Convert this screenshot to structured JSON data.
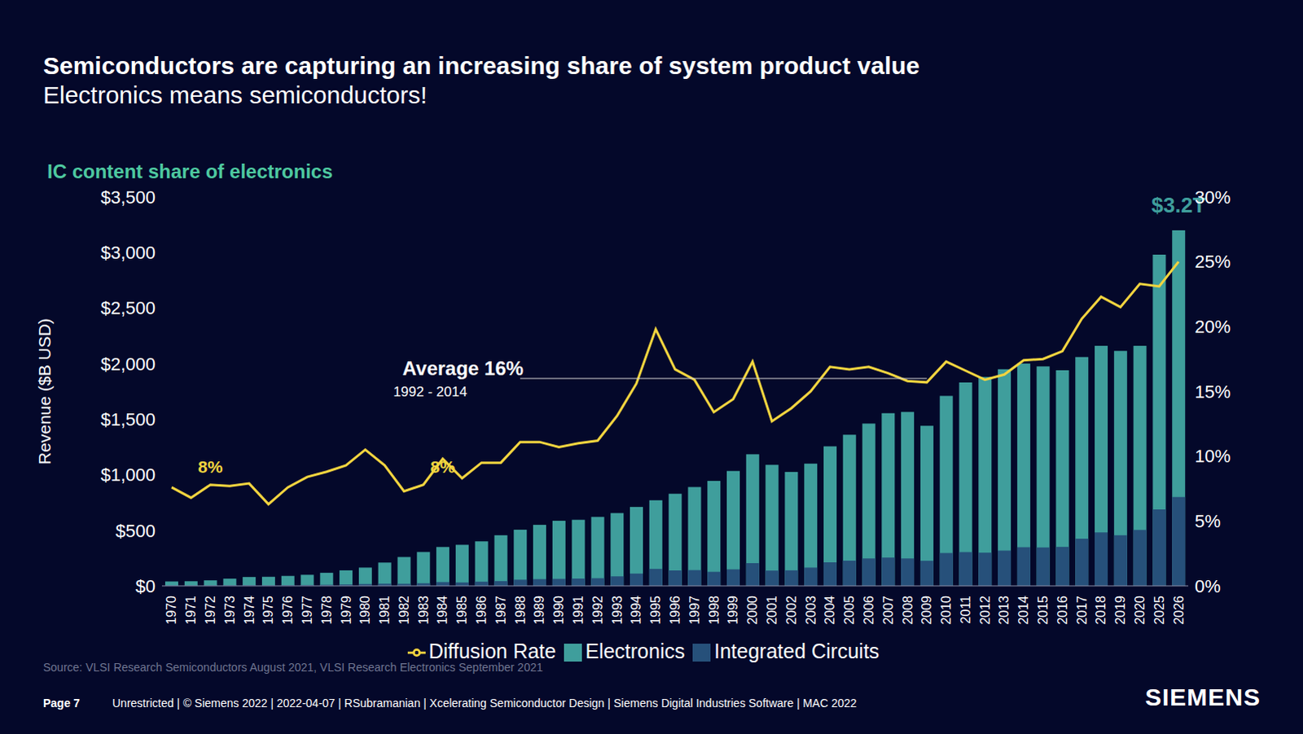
{
  "chart_data": {
    "type": "bar",
    "title": "Semiconductors are capturing an increasing share of system product value",
    "subtitle": "Electronics means semiconductors!",
    "chart_title": "IC content share of electronics",
    "y_label": "Revenue ($B USD)",
    "source": "Source:  VLSI Research Semiconductors August 2021, VLSI Research Electronics September 2021",
    "footer_page": "Page 7",
    "footer": "Unrestricted | © Siemens 2022 | 2022-04-07 | RSubramanian | Xcelerating Semiconductor Design | Siemens Digital Industries Software | MAC 2022",
    "logo": "SIEMENS",
    "categories": [
      "1970",
      "1971",
      "1972",
      "1973",
      "1974",
      "1975",
      "1976",
      "1977",
      "1978",
      "1979",
      "1980",
      "1981",
      "1982",
      "1983",
      "1984",
      "1985",
      "1986",
      "1987",
      "1988",
      "1989",
      "1990",
      "1991",
      "1992",
      "1993",
      "1994",
      "1995",
      "1996",
      "1997",
      "1998",
      "1999",
      "2000",
      "2001",
      "2002",
      "2003",
      "2004",
      "2005",
      "2006",
      "2007",
      "2008",
      "2009",
      "2010",
      "2011",
      "2012",
      "2013",
      "2014",
      "2015",
      "2016",
      "2017",
      "2018",
      "2019",
      "2020",
      "2025",
      "2026"
    ],
    "series": [
      {
        "name": "Electronics",
        "type": "bar",
        "color": "#3f9e9c",
        "values": [
          40,
          42,
          50,
          65,
          80,
          82,
          90,
          100,
          118,
          140,
          165,
          210,
          260,
          305,
          350,
          370,
          400,
          455,
          505,
          550,
          585,
          595,
          620,
          655,
          710,
          770,
          830,
          890,
          945,
          1035,
          1185,
          1090,
          1025,
          1100,
          1255,
          1360,
          1460,
          1555,
          1565,
          1440,
          1710,
          1830,
          1880,
          1950,
          2000,
          1975,
          1940,
          2060,
          2160,
          2115,
          2160,
          2980,
          3200
        ]
      },
      {
        "name": "Integrated Circuits",
        "type": "bar",
        "color": "#26507a",
        "values": [
          3,
          3,
          4,
          5,
          6,
          5,
          7,
          8,
          10,
          13,
          17,
          20,
          19,
          24,
          34,
          31,
          38,
          43,
          56,
          61,
          63,
          66,
          69,
          86,
          111,
          153,
          139,
          142,
          127,
          149,
          205,
          138,
          140,
          165,
          212,
          227,
          247,
          255,
          247,
          226,
          296,
          304,
          299,
          318,
          348,
          346,
          351,
          424,
          482,
          455,
          503,
          688,
          800
        ]
      },
      {
        "name": "Diffusion Rate",
        "type": "line",
        "axis": "y2",
        "color": "#f2d43f",
        "values": [
          7.6,
          6.8,
          7.8,
          7.7,
          7.9,
          6.3,
          7.6,
          8.4,
          8.8,
          9.3,
          10.5,
          9.3,
          7.3,
          7.8,
          9.8,
          8.3,
          9.5,
          9.5,
          11.1,
          11.1,
          10.7,
          11.0,
          11.2,
          13.1,
          15.6,
          19.8,
          16.7,
          15.9,
          13.4,
          14.4,
          17.3,
          12.7,
          13.7,
          15.0,
          16.9,
          16.7,
          16.9,
          16.4,
          15.8,
          15.7,
          17.3,
          16.6,
          15.9,
          16.3,
          17.4,
          17.5,
          18.1,
          20.6,
          22.3,
          21.5,
          23.3,
          23.1,
          25.0
        ]
      }
    ],
    "ylim": [
      0,
      3500
    ],
    "yticks": [
      {
        "value": 0,
        "label": "$0"
      },
      {
        "value": 500,
        "label": "$500"
      },
      {
        "value": 1000,
        "label": "$1,000"
      },
      {
        "value": 1500,
        "label": "$1,500"
      },
      {
        "value": 2000,
        "label": "$2,000"
      },
      {
        "value": 2500,
        "label": "$2,500"
      },
      {
        "value": 3000,
        "label": "$3,000"
      },
      {
        "value": 3500,
        "label": "$3,500"
      }
    ],
    "y2lim": [
      0,
      30
    ],
    "y2ticks": [
      {
        "value": 0,
        "label": "0%"
      },
      {
        "value": 5,
        "label": "5%"
      },
      {
        "value": 10,
        "label": "10%"
      },
      {
        "value": 15,
        "label": "15%"
      },
      {
        "value": 20,
        "label": "20%"
      },
      {
        "value": 25,
        "label": "25%"
      },
      {
        "value": 30,
        "label": "30%"
      }
    ],
    "annotations": [
      {
        "text": "8%",
        "x": "1972",
        "y": 8,
        "axis": "y2",
        "color": "#f2d43f"
      },
      {
        "text": "8%",
        "x": "1984",
        "y": 8,
        "axis": "y2",
        "color": "#f2d43f"
      },
      {
        "text": "Average 16%",
        "subtext": "1992 - 2014",
        "x": "1988",
        "x_end": "2009",
        "y": 16,
        "axis": "y2",
        "color": "#ffffff"
      },
      {
        "text": "$3.2T",
        "x": "2026",
        "y": 3200,
        "axis": "y",
        "color": "#3f9e9c"
      }
    ],
    "grid": false,
    "legend": "bottom",
    "stacked": false
  }
}
